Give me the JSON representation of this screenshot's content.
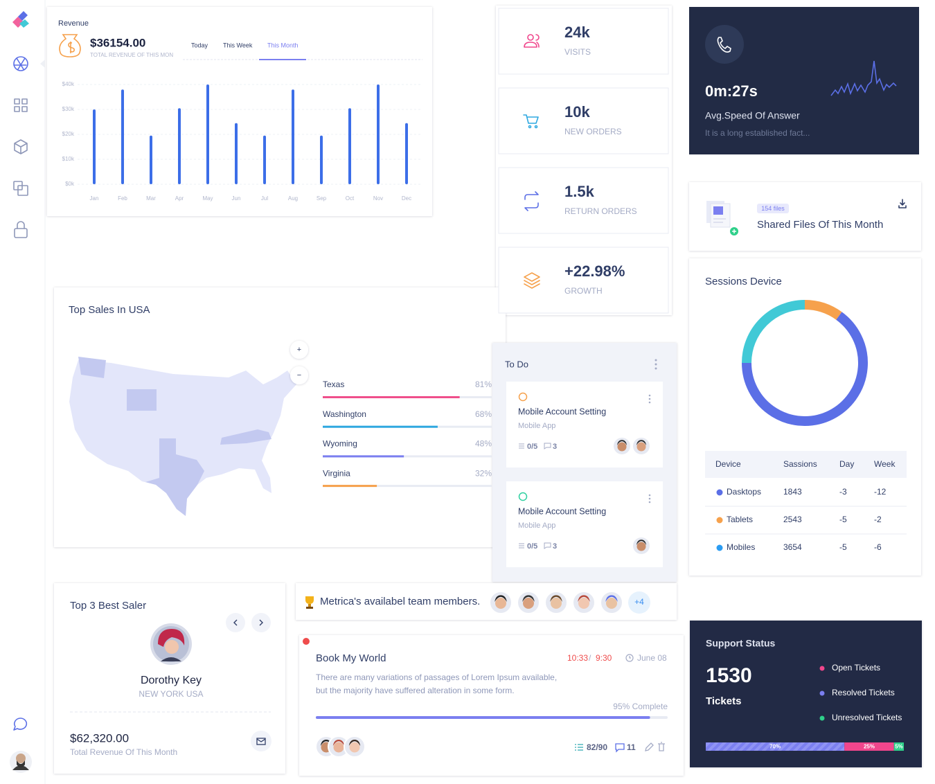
{
  "revenue": {
    "title": "Revenue",
    "amount": "$36154.00",
    "subtitle": "TOTAL REVENUE OF THIS MONTH",
    "tabs": [
      "Today",
      "This Week",
      "This Month"
    ]
  },
  "chart_data": [
    {
      "type": "bar",
      "categories": [
        "Jan",
        "Feb",
        "Mar",
        "Apr",
        "May",
        "Jun",
        "Jul",
        "Aug",
        "Sep",
        "Oct",
        "Nov",
        "Dec"
      ],
      "values": [
        30000,
        38000,
        19500,
        30500,
        40000,
        24500,
        19500,
        38000,
        19500,
        30500,
        40000,
        24500
      ],
      "color": "#3c6ee8",
      "ylim": [
        0,
        40000
      ],
      "yticks": [
        {
          "value": 0,
          "label": "$0k"
        },
        {
          "value": 10000,
          "label": "$10k"
        },
        {
          "value": 20000,
          "label": "$20k"
        },
        {
          "value": 30000,
          "label": "$30k"
        },
        {
          "value": 40000,
          "label": "$40k"
        }
      ],
      "grid": true
    },
    {
      "type": "pie",
      "values": [
        10,
        65,
        25
      ],
      "colors": [
        "#f6a14c",
        "#5b6fe6",
        "#41c9d6"
      ],
      "donut": true
    }
  ],
  "stats": [
    {
      "value": "24k",
      "label": "VISITS"
    },
    {
      "value": "10k",
      "label": "NEW ORDERS"
    },
    {
      "value": "1.5k",
      "label": "RETURN ORDERS"
    },
    {
      "value": "+22.98%",
      "label": "GROWTH"
    }
  ],
  "speed": {
    "value": "0m:27s",
    "title": "Avg.Speed Of Answer",
    "text": "It is a long established fact..."
  },
  "files": {
    "badge": "154 files",
    "title": "Shared Files Of This Month"
  },
  "sessions": {
    "title": "Sessions Device",
    "header": [
      "Device",
      "Sassions",
      "Day",
      "Week"
    ],
    "row_colors": [
      "#5b6fe6",
      "#f6a14c",
      "#2b9cf2"
    ],
    "rows": [
      [
        "Dasktops",
        1843,
        -3,
        -12
      ],
      [
        "Tablets",
        2543,
        -5,
        -2
      ],
      [
        "Mobiles",
        3654,
        -5,
        -6
      ]
    ]
  },
  "top_sales": {
    "title": "Top Sales In USA",
    "zoom_in": "+",
    "zoom_out": "−",
    "states": [
      {
        "name": "Texas",
        "value": 81,
        "label": "81%",
        "color": "#ef4f8b"
      },
      {
        "name": "Washington",
        "value": 68,
        "label": "68%",
        "color": "#2ea8e0"
      },
      {
        "name": "Wyoming",
        "value": 48,
        "label": "48%",
        "color": "#7b7ff0"
      },
      {
        "name": "Virginia",
        "value": 32,
        "label": "32%",
        "color": "#f6a14c"
      }
    ]
  },
  "todo": {
    "title": "To Do",
    "tasks": [
      {
        "title": "Mobile Account Setting",
        "subtitle": "Mobile App",
        "checklist": "0/5",
        "comments": 3
      },
      {
        "title": "Mobile Account Setting",
        "subtitle": "Mobile App",
        "checklist": "0/5",
        "comments": 3
      }
    ]
  },
  "team": {
    "text": "Metrica's availabel team members.",
    "more": "+4"
  },
  "best_saler": {
    "title": "Top 3 Best Saler",
    "name": "Dorothy Key",
    "location": "NEW YORK USA",
    "amount": "$62,320.00",
    "caption": "Total Revenue Of This Month"
  },
  "book": {
    "title": "Book My World",
    "time": [
      "10:33",
      "9:30"
    ],
    "time_separator": "/",
    "date": "June 08",
    "description": [
      "There are many variations of passages of Lorem Ipsum available,",
      "but the majority have suffered alteration in some form."
    ],
    "progress": 95,
    "progress_label": "95% Complete",
    "tasks": "82/90",
    "comments": 11
  },
  "support": {
    "title": "Support Status",
    "count": 1530,
    "count_label": "Tickets",
    "legend": [
      {
        "name": "Open Tickets",
        "color": "#f0468c"
      },
      {
        "name": "Resolved Tickets",
        "color": "#7b7ff0"
      },
      {
        "name": "Unresolved Tickets",
        "color": "#2fd08a"
      }
    ],
    "segments": [
      {
        "value": 70,
        "label": "70%",
        "color": "#7b7ff0"
      },
      {
        "value": 25,
        "label": "25%",
        "color": "#f0468c"
      },
      {
        "value": 5,
        "label": "5%",
        "color": "#2fd08a"
      }
    ]
  }
}
